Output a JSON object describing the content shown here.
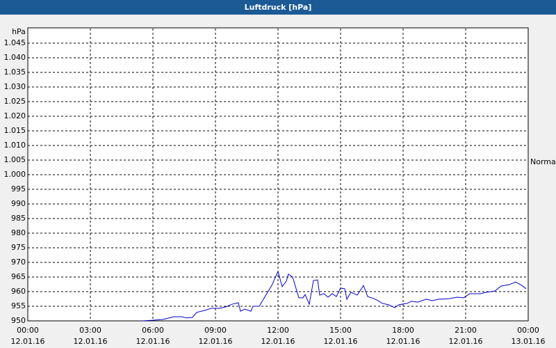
{
  "chart_data": {
    "type": "line",
    "title": "Luftdruck [hPa]",
    "y_unit": "hPa",
    "x": [
      5.5,
      6.0,
      6.5,
      7.0,
      7.4,
      7.6,
      7.9,
      8.1,
      8.5,
      8.8,
      9.2,
      9.5,
      9.8,
      10.1,
      10.2,
      10.4,
      10.7,
      10.8,
      11.1,
      11.3,
      11.7,
      12.0,
      12.2,
      12.4,
      12.5,
      12.7,
      13.0,
      13.2,
      13.3,
      13.5,
      13.7,
      13.9,
      14.0,
      14.2,
      14.4,
      14.6,
      14.8,
      15.0,
      15.2,
      15.3,
      15.5,
      15.8,
      16.1,
      16.3,
      16.6,
      16.8,
      17.0,
      17.3,
      17.6,
      17.8,
      18.2,
      18.4,
      18.7,
      19.1,
      19.4,
      19.7,
      20.2,
      20.6,
      20.9,
      21.2,
      21.7,
      22.0,
      22.4,
      22.7,
      23.1,
      23.4,
      23.7,
      23.9
    ],
    "series": [
      {
        "name": "Normal",
        "color": "#0000cc",
        "values": [
          950.0,
          950.2,
          950.5,
          951.4,
          951.4,
          951.0,
          951.2,
          952.9,
          953.6,
          954.3,
          954.3,
          954.8,
          955.7,
          956.2,
          953.3,
          954.0,
          953.3,
          955.0,
          955.0,
          957.4,
          962.1,
          966.9,
          961.7,
          963.6,
          966.0,
          965.0,
          957.9,
          957.9,
          959.0,
          955.7,
          963.8,
          964.0,
          958.8,
          959.3,
          958.1,
          959.3,
          958.3,
          961.2,
          961.0,
          957.4,
          959.8,
          958.8,
          962.1,
          958.3,
          957.6,
          956.9,
          956.0,
          955.5,
          954.5,
          955.5,
          956.0,
          956.7,
          956.4,
          957.4,
          956.9,
          957.4,
          957.6,
          958.1,
          957.9,
          959.3,
          959.3,
          959.8,
          960.2,
          961.9,
          962.4,
          963.3,
          962.1,
          961.0
        ]
      }
    ],
    "xlim": [
      0,
      24
    ],
    "xticks": [
      {
        "value": 0,
        "label": "00:00"
      },
      {
        "value": 3,
        "label": "03:00"
      },
      {
        "value": 6,
        "label": "06:00"
      },
      {
        "value": 9,
        "label": "09:00"
      },
      {
        "value": 12,
        "label": "12:00"
      },
      {
        "value": 15,
        "label": "15:00"
      },
      {
        "value": 18,
        "label": "18:00"
      },
      {
        "value": 21,
        "label": "21:00"
      },
      {
        "value": 24,
        "label": "00:00"
      }
    ],
    "xtick_dates": [
      "12.01.16",
      "12.01.16",
      "12.01.16",
      "12.01.16",
      "12.01.16",
      "12.01.16",
      "12.01.16",
      "12.01.16",
      "13.01.16"
    ],
    "ylim": [
      950,
      1050
    ],
    "yticks": [
      950,
      955,
      960,
      965,
      970,
      975,
      980,
      985,
      990,
      995,
      {
        "value": 1000,
        "label": "1.000"
      },
      {
        "value": 1005,
        "label": "1.005"
      },
      {
        "value": 1010,
        "label": "1.010"
      },
      {
        "value": 1015,
        "label": "1.015"
      },
      {
        "value": 1020,
        "label": "1.020"
      },
      {
        "value": 1025,
        "label": "1.025"
      },
      {
        "value": 1030,
        "label": "1.030"
      },
      {
        "value": 1035,
        "label": "1.035"
      },
      {
        "value": 1040,
        "label": "1.040"
      },
      {
        "value": 1045,
        "label": "1.045"
      }
    ],
    "grid": true
  }
}
